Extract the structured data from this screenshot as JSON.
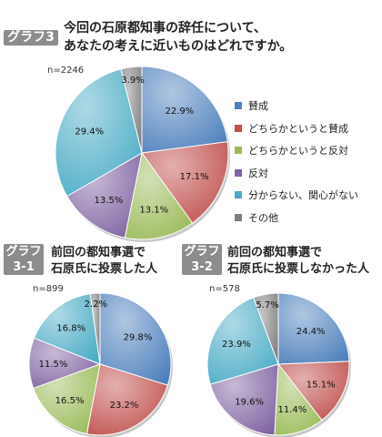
{
  "header": {
    "tag": "グラフ3",
    "title_line1": "今回の石原都知事の辞任について、",
    "title_line2": "あなたの考えに近いものはどれですか。"
  },
  "legend": [
    {
      "label": "賛成",
      "color": "#4f81bd"
    },
    {
      "label": "どちらかというと賛成",
      "color": "#c0504d"
    },
    {
      "label": "どちらかというと反対",
      "color": "#9bbb59"
    },
    {
      "label": "反対",
      "color": "#8064a2"
    },
    {
      "label": "分からない、関心がない",
      "color": "#4bacc6"
    },
    {
      "label": "その他",
      "color": "#7f7f7f"
    }
  ],
  "sub1": {
    "tag_line1": "グラフ",
    "tag_line2": "3-1",
    "title_line1": "前回の都知事選で",
    "title_line2": "石原氏に投票した人"
  },
  "sub2": {
    "tag_line1": "グラフ",
    "tag_line2": "3-2",
    "title_line1": "前回の都知事選で",
    "title_line2": "石原氏に投票しなかった人"
  },
  "chart_data": [
    {
      "type": "pie",
      "n_label": "n=2246",
      "categories": [
        "賛成",
        "どちらかというと賛成",
        "どちらかというと反対",
        "反対",
        "分からない、関心がない",
        "その他"
      ],
      "values": [
        22.9,
        17.1,
        13.1,
        13.5,
        29.4,
        3.9
      ],
      "labels": [
        "22.9%",
        "17.1%",
        "13.1%",
        "13.5%",
        "29.4%",
        "3.9%"
      ]
    },
    {
      "type": "pie",
      "n_label": "n=899",
      "categories": [
        "賛成",
        "どちらかというと賛成",
        "どちらかというと反対",
        "反対",
        "分からない、関心がない",
        "その他"
      ],
      "values": [
        29.8,
        23.2,
        16.5,
        11.5,
        16.8,
        2.2
      ],
      "labels": [
        "29.8%",
        "23.2%",
        "16.5%",
        "11.5%",
        "16.8%",
        "2.2%"
      ]
    },
    {
      "type": "pie",
      "n_label": "n=578",
      "categories": [
        "賛成",
        "どちらかというと賛成",
        "どちらかというと反対",
        "反対",
        "分からない、関心がない",
        "その他"
      ],
      "values": [
        24.4,
        15.1,
        11.4,
        19.6,
        23.9,
        5.7
      ],
      "labels": [
        "24.4%",
        "15.1%",
        "11.4%",
        "19.6%",
        "23.9%",
        "5.7%"
      ]
    }
  ]
}
